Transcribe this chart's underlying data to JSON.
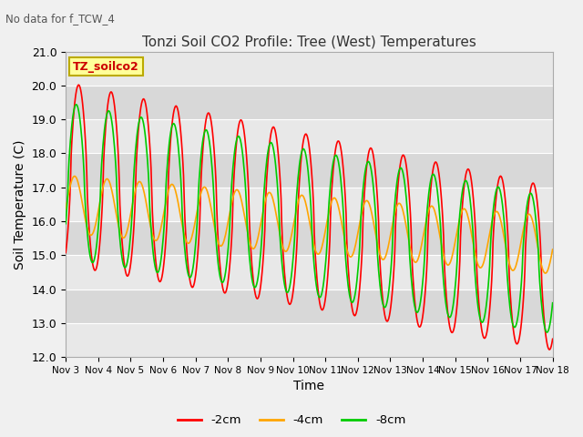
{
  "title": "Tonzi Soil CO2 Profile: Tree (West) Temperatures",
  "subtitle": "No data for f_TCW_4",
  "xlabel": "Time",
  "ylabel": "Soil Temperature (C)",
  "ylim": [
    12.0,
    21.0
  ],
  "yticks": [
    12.0,
    13.0,
    14.0,
    15.0,
    16.0,
    17.0,
    18.0,
    19.0,
    20.0,
    21.0
  ],
  "xtick_labels": [
    "Nov 3",
    "Nov 4",
    "Nov 5",
    "Nov 6",
    "Nov 7",
    "Nov 8",
    "Nov 9",
    "Nov 10",
    "Nov 11",
    "Nov 12",
    "Nov 13",
    "Nov 14",
    "Nov 15",
    "Nov 16",
    "Nov 17",
    "Nov 18"
  ],
  "legend_labels": [
    "-2cm",
    "-4cm",
    "-8cm"
  ],
  "line_colors": [
    "#ff0000",
    "#ffa500",
    "#00cc00"
  ],
  "inset_label": "TZ_soilco2",
  "inset_bg": "#ffff99",
  "inset_border": "#bbaa00",
  "fig_bg": "#f0f0f0",
  "plot_bg_light": "#e8e8e8",
  "plot_bg_dark": "#d8d8d8",
  "grid_color": "#ffffff",
  "n_days": 15,
  "points_per_day": 48
}
